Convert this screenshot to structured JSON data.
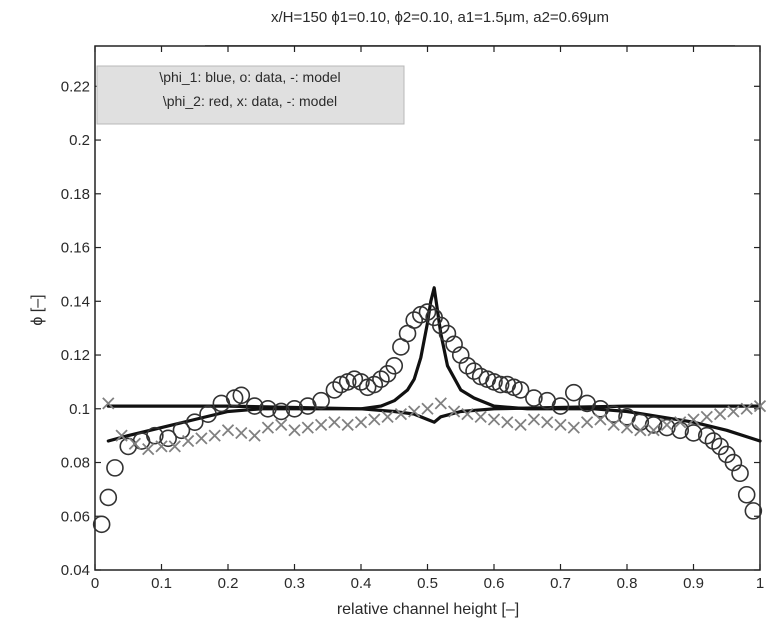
{
  "chart_data": {
    "type": "scatter",
    "title": "x/H=150 ϕ1=0.10, ϕ2=0.10, a1=1.5μm, a2=0.69μm",
    "xlabel": "relative channel height [–]",
    "ylabel": "ϕ [–]",
    "xlim": [
      0,
      1
    ],
    "ylim": [
      0.04,
      0.235
    ],
    "xticks": [
      "0",
      "0.1",
      "0.2",
      "0.3",
      "0.4",
      "0.5",
      "0.6",
      "0.7",
      "0.8",
      "0.9",
      "1"
    ],
    "yticks": [
      "0.04",
      "0.06",
      "0.08",
      "0.1",
      "0.12",
      "0.14",
      "0.16",
      "0.18",
      "0.2",
      "0.22"
    ],
    "grid": false,
    "legend_position": "top-left",
    "legend": [
      "\\phi_1: blue, o: data, -: model",
      "\\phi_2: red, x: data, -: model"
    ],
    "series": [
      {
        "name": "\\phi_1",
        "marker": "o",
        "color": "#333333",
        "x": [
          0.01,
          0.02,
          0.03,
          0.05,
          0.07,
          0.09,
          0.11,
          0.13,
          0.15,
          0.17,
          0.19,
          0.21,
          0.22,
          0.24,
          0.26,
          0.28,
          0.3,
          0.32,
          0.34,
          0.36,
          0.37,
          0.38,
          0.39,
          0.4,
          0.41,
          0.42,
          0.43,
          0.44,
          0.45,
          0.46,
          0.47,
          0.48,
          0.49,
          0.5,
          0.51,
          0.52,
          0.53,
          0.54,
          0.55,
          0.56,
          0.57,
          0.58,
          0.59,
          0.6,
          0.61,
          0.62,
          0.63,
          0.64,
          0.66,
          0.68,
          0.7,
          0.72,
          0.74,
          0.76,
          0.78,
          0.8,
          0.82,
          0.84,
          0.86,
          0.88,
          0.9,
          0.92,
          0.93,
          0.94,
          0.95,
          0.96,
          0.97,
          0.98,
          0.99
        ],
        "y": [
          0.057,
          0.067,
          0.078,
          0.086,
          0.088,
          0.09,
          0.089,
          0.092,
          0.095,
          0.098,
          0.102,
          0.104,
          0.105,
          0.101,
          0.1,
          0.099,
          0.1,
          0.101,
          0.103,
          0.107,
          0.109,
          0.11,
          0.111,
          0.11,
          0.108,
          0.109,
          0.111,
          0.113,
          0.116,
          0.123,
          0.128,
          0.133,
          0.135,
          0.136,
          0.134,
          0.131,
          0.128,
          0.124,
          0.12,
          0.116,
          0.114,
          0.112,
          0.111,
          0.11,
          0.109,
          0.109,
          0.108,
          0.107,
          0.104,
          0.103,
          0.101,
          0.106,
          0.102,
          0.1,
          0.098,
          0.097,
          0.095,
          0.094,
          0.093,
          0.092,
          0.091,
          0.09,
          0.088,
          0.086,
          0.083,
          0.08,
          0.076,
          0.068,
          0.062
        ]
      },
      {
        "name": "\\phi_2",
        "marker": "x",
        "color": "#808080",
        "x": [
          0.02,
          0.04,
          0.06,
          0.08,
          0.1,
          0.12,
          0.14,
          0.16,
          0.18,
          0.2,
          0.22,
          0.24,
          0.26,
          0.28,
          0.3,
          0.32,
          0.34,
          0.36,
          0.38,
          0.4,
          0.42,
          0.44,
          0.46,
          0.48,
          0.5,
          0.52,
          0.54,
          0.56,
          0.58,
          0.6,
          0.62,
          0.64,
          0.66,
          0.68,
          0.7,
          0.72,
          0.74,
          0.76,
          0.78,
          0.8,
          0.82,
          0.84,
          0.86,
          0.88,
          0.9,
          0.92,
          0.94,
          0.96,
          0.98,
          1.0
        ],
        "y": [
          0.102,
          0.09,
          0.087,
          0.085,
          0.086,
          0.086,
          0.088,
          0.089,
          0.09,
          0.092,
          0.091,
          0.09,
          0.093,
          0.094,
          0.092,
          0.093,
          0.094,
          0.095,
          0.094,
          0.095,
          0.096,
          0.097,
          0.098,
          0.099,
          0.1,
          0.102,
          0.099,
          0.098,
          0.097,
          0.096,
          0.095,
          0.094,
          0.096,
          0.095,
          0.094,
          0.093,
          0.095,
          0.096,
          0.094,
          0.093,
          0.092,
          0.092,
          0.094,
          0.095,
          0.096,
          0.097,
          0.098,
          0.099,
          0.1,
          0.101
        ]
      }
    ],
    "model_curves": [
      {
        "name": "\\phi_1 model",
        "x": [
          0.02,
          0.05,
          0.1,
          0.15,
          0.2,
          0.25,
          0.3,
          0.35,
          0.4,
          0.43,
          0.45,
          0.47,
          0.48,
          0.49,
          0.5,
          0.505,
          0.51,
          0.52,
          0.53,
          0.55,
          0.57,
          0.6,
          0.65,
          0.7,
          0.75,
          0.8,
          0.85,
          0.9,
          0.95,
          1.0
        ],
        "y": [
          0.088,
          0.09,
          0.093,
          0.096,
          0.099,
          0.1,
          0.1,
          0.1,
          0.1,
          0.101,
          0.103,
          0.107,
          0.111,
          0.119,
          0.132,
          0.14,
          0.145,
          0.128,
          0.116,
          0.107,
          0.104,
          0.101,
          0.1,
          0.1,
          0.1,
          0.099,
          0.097,
          0.095,
          0.092,
          0.088
        ]
      },
      {
        "name": "\\phi_2 model",
        "x": [
          0.02,
          0.2,
          0.4,
          0.45,
          0.48,
          0.5,
          0.51,
          0.52,
          0.55,
          0.6,
          0.8,
          1.0
        ],
        "y": [
          0.101,
          0.101,
          0.1,
          0.099,
          0.098,
          0.096,
          0.095,
          0.097,
          0.099,
          0.1,
          0.101,
          0.101
        ]
      }
    ]
  }
}
